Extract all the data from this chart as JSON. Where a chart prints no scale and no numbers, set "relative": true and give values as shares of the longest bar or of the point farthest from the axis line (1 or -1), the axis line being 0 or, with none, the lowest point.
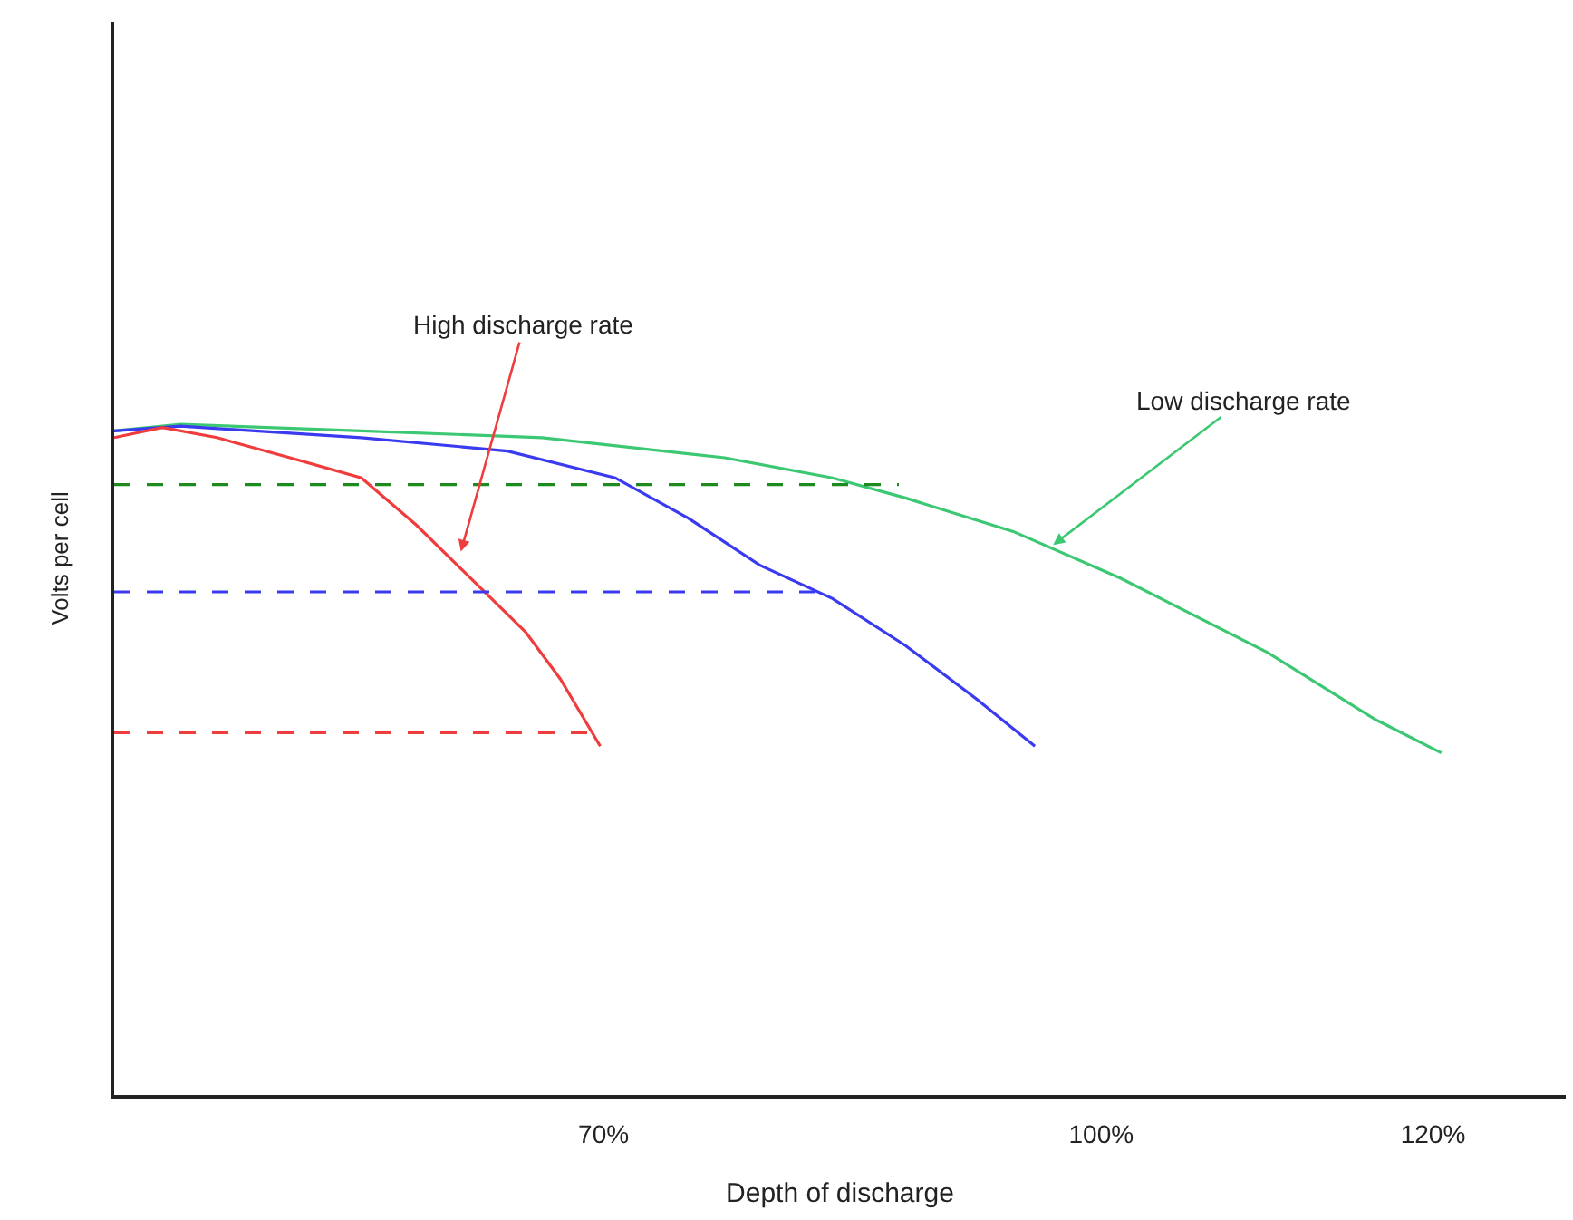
{
  "chart_data": {
    "type": "line",
    "relative": true,
    "xlabel": "Depth of discharge",
    "ylabel": "Volts per cell",
    "xlim": [
      40.5,
      128
    ],
    "xticks": [
      {
        "value": 70,
        "label": "70%"
      },
      {
        "value": 100,
        "label": "100%"
      },
      {
        "value": 120,
        "label": "120%"
      }
    ],
    "marker": "none",
    "line_style": "solid",
    "series": [
      {
        "color": "#3cc873",
        "x": [
          40.5,
          44.5,
          55.4,
          66.3,
          77.3,
          83.8,
          88.2,
          94.7,
          101.2,
          110,
          116.5,
          120.5
        ],
        "values": [
          0.99,
          1,
          0.99,
          0.98,
          0.95,
          0.92,
          0.89,
          0.84,
          0.77,
          0.66,
          0.56,
          0.51
        ]
      },
      {
        "color": "#3a3af0",
        "x": [
          40.5,
          44.5,
          55.4,
          64.2,
          70.7,
          75.1,
          79.4,
          83.8,
          88.2,
          92.5,
          96
        ],
        "values": [
          0.99,
          0.997,
          0.98,
          0.96,
          0.92,
          0.86,
          0.79,
          0.74,
          0.67,
          0.59,
          0.52
        ]
      },
      {
        "color": "#f03c3c",
        "x": [
          40.5,
          43.4,
          46.7,
          51.1,
          55.4,
          58.7,
          62,
          65.3,
          67.4,
          69.8
        ],
        "values": [
          0.98,
          0.995,
          0.98,
          0.95,
          0.92,
          0.85,
          0.77,
          0.69,
          0.62,
          0.52
        ]
      },
      {
        "color": "#1f8a1f",
        "line_style": "dashed",
        "x": [
          40.5,
          87.8
        ],
        "values": [
          0.91,
          0.91
        ]
      },
      {
        "color": "#3a3af0",
        "line_style": "dashed",
        "x": [
          40.5,
          83.6
        ],
        "values": [
          0.75,
          0.75
        ]
      },
      {
        "color": "#f03c3c",
        "line_style": "dashed",
        "x": [
          40.5,
          69.8
        ],
        "values": [
          0.54,
          0.54
        ]
      }
    ],
    "annotations": [
      {
        "text": "High discharge rate",
        "x": 61.4,
        "y": 0.81
      },
      {
        "text": "Low discharge rate",
        "x": 97.1,
        "y": 0.82
      }
    ]
  }
}
